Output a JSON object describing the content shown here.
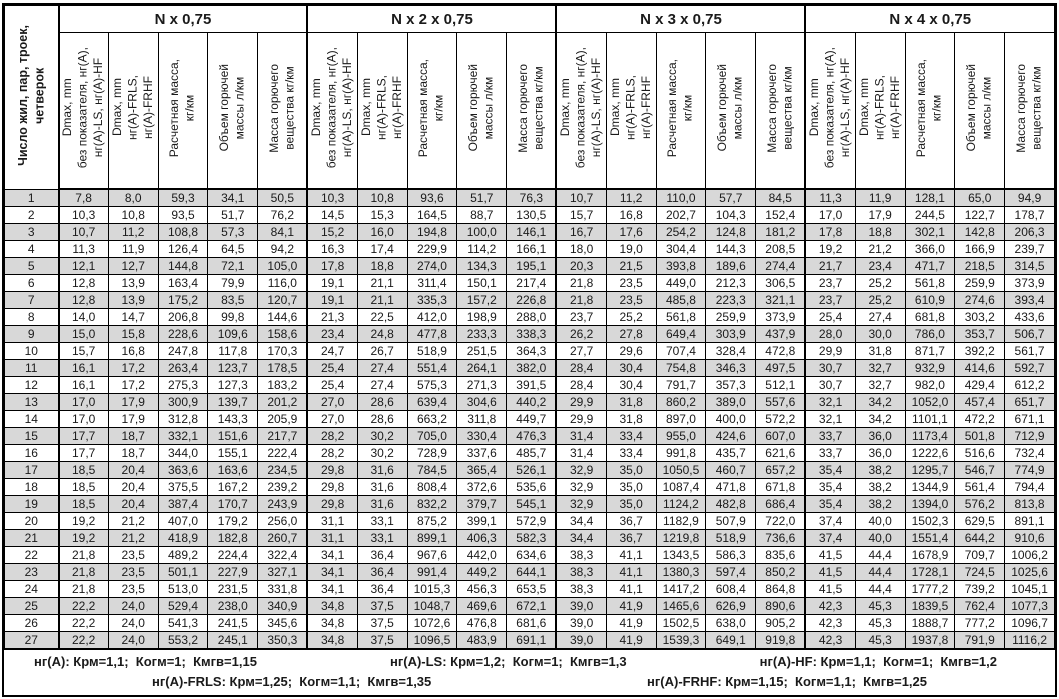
{
  "colors": {
    "stripe": "#d8d8d8",
    "border": "#000000",
    "background": "#ffffff"
  },
  "table": {
    "row_header_title": "Число жил, пар, троек,\nчетверок",
    "groups": [
      {
        "title": "N x 0,75"
      },
      {
        "title": "N x 2 x 0,75"
      },
      {
        "title": "N x 3 x 0,75"
      },
      {
        "title": "N x 4 x 0,75"
      }
    ],
    "sub_columns": [
      "Dmax, mm\nбез показателя, нг(А),\nнг(А)-LS, нг(А)-HF",
      "Dmax, mm\nнг(А)-FRLS,\nнг(А)-FRHF",
      "Расчетная масса,\nкг/км",
      "Объем горючей\nмассы л/км",
      "Масса горючего\nвещества кг/км"
    ],
    "rows": [
      {
        "n": "1",
        "values": [
          "7,8",
          "8,0",
          "59,3",
          "34,1",
          "50,5",
          "10,3",
          "10,8",
          "93,6",
          "51,7",
          "76,3",
          "10,7",
          "11,2",
          "110,0",
          "57,7",
          "84,5",
          "11,3",
          "11,9",
          "128,1",
          "65,0",
          "94,9"
        ]
      },
      {
        "n": "2",
        "values": [
          "10,3",
          "10,8",
          "93,5",
          "51,7",
          "76,2",
          "14,5",
          "15,3",
          "164,5",
          "88,7",
          "130,5",
          "15,7",
          "16,8",
          "202,7",
          "104,3",
          "152,4",
          "17,0",
          "17,9",
          "244,5",
          "122,7",
          "178,7"
        ]
      },
      {
        "n": "3",
        "values": [
          "10,7",
          "11,2",
          "108,8",
          "57,3",
          "84,1",
          "15,2",
          "16,0",
          "194,8",
          "100,0",
          "146,1",
          "16,7",
          "17,6",
          "254,2",
          "124,8",
          "181,2",
          "17,8",
          "18,8",
          "302,1",
          "142,8",
          "206,3"
        ]
      },
      {
        "n": "4",
        "values": [
          "11,3",
          "11,9",
          "126,4",
          "64,5",
          "94,2",
          "16,3",
          "17,4",
          "229,9",
          "114,2",
          "166,1",
          "18,0",
          "19,0",
          "304,4",
          "144,3",
          "208,5",
          "19,2",
          "21,2",
          "366,0",
          "166,9",
          "239,7"
        ]
      },
      {
        "n": "5",
        "values": [
          "12,1",
          "12,7",
          "144,8",
          "72,1",
          "105,0",
          "17,8",
          "18,8",
          "274,0",
          "134,3",
          "195,1",
          "20,3",
          "21,5",
          "393,8",
          "189,6",
          "274,4",
          "21,7",
          "23,4",
          "471,7",
          "218,5",
          "314,5"
        ]
      },
      {
        "n": "6",
        "values": [
          "12,8",
          "13,9",
          "163,4",
          "79,9",
          "116,0",
          "19,1",
          "21,1",
          "311,4",
          "150,1",
          "217,4",
          "21,8",
          "23,5",
          "449,0",
          "212,3",
          "306,5",
          "23,7",
          "25,2",
          "561,8",
          "259,9",
          "373,9"
        ]
      },
      {
        "n": "7",
        "values": [
          "12,8",
          "13,9",
          "175,2",
          "83,5",
          "120,7",
          "19,1",
          "21,1",
          "335,3",
          "157,2",
          "226,8",
          "21,8",
          "23,5",
          "485,8",
          "223,3",
          "321,1",
          "23,7",
          "25,2",
          "610,9",
          "274,6",
          "393,4"
        ]
      },
      {
        "n": "8",
        "values": [
          "14,0",
          "14,7",
          "206,8",
          "99,8",
          "144,6",
          "21,3",
          "22,5",
          "412,0",
          "198,9",
          "288,0",
          "23,7",
          "25,2",
          "561,8",
          "259,9",
          "373,9",
          "25,4",
          "27,4",
          "681,8",
          "303,2",
          "433,6"
        ]
      },
      {
        "n": "9",
        "values": [
          "15,0",
          "15,8",
          "228,6",
          "109,6",
          "158,6",
          "23,4",
          "24,8",
          "477,8",
          "233,3",
          "338,3",
          "26,2",
          "27,8",
          "649,4",
          "303,9",
          "437,9",
          "28,0",
          "30,0",
          "786,0",
          "353,7",
          "506,7"
        ]
      },
      {
        "n": "10",
        "values": [
          "15,7",
          "16,8",
          "247,8",
          "117,8",
          "170,3",
          "24,7",
          "26,7",
          "518,9",
          "251,5",
          "364,3",
          "27,7",
          "29,6",
          "707,4",
          "328,4",
          "472,8",
          "29,9",
          "31,8",
          "871,7",
          "392,2",
          "561,7"
        ]
      },
      {
        "n": "11",
        "values": [
          "16,1",
          "17,2",
          "263,4",
          "123,7",
          "178,5",
          "25,4",
          "27,4",
          "551,4",
          "264,1",
          "382,0",
          "28,4",
          "30,4",
          "754,8",
          "346,3",
          "497,5",
          "30,7",
          "32,7",
          "932,9",
          "414,6",
          "592,7"
        ]
      },
      {
        "n": "12",
        "values": [
          "16,1",
          "17,2",
          "275,3",
          "127,3",
          "183,2",
          "25,4",
          "27,4",
          "575,3",
          "271,3",
          "391,5",
          "28,4",
          "30,4",
          "791,7",
          "357,3",
          "512,1",
          "30,7",
          "32,7",
          "982,0",
          "429,4",
          "612,2"
        ]
      },
      {
        "n": "13",
        "values": [
          "17,0",
          "17,9",
          "300,9",
          "139,7",
          "201,2",
          "27,0",
          "28,6",
          "639,4",
          "304,6",
          "440,2",
          "29,9",
          "31,8",
          "860,2",
          "389,0",
          "557,6",
          "32,1",
          "34,2",
          "1052,0",
          "457,4",
          "651,7"
        ]
      },
      {
        "n": "14",
        "values": [
          "17,0",
          "17,9",
          "312,8",
          "143,3",
          "205,9",
          "27,0",
          "28,6",
          "663,2",
          "311,8",
          "449,7",
          "29,9",
          "31,8",
          "897,0",
          "400,0",
          "572,2",
          "32,1",
          "34,2",
          "1101,1",
          "472,2",
          "671,1"
        ]
      },
      {
        "n": "15",
        "values": [
          "17,7",
          "18,7",
          "332,1",
          "151,6",
          "217,7",
          "28,2",
          "30,2",
          "705,0",
          "330,4",
          "476,3",
          "31,4",
          "33,4",
          "955,0",
          "424,6",
          "607,0",
          "33,7",
          "36,0",
          "1173,4",
          "501,8",
          "712,9"
        ]
      },
      {
        "n": "16",
        "values": [
          "17,7",
          "18,7",
          "344,0",
          "155,1",
          "222,4",
          "28,2",
          "30,2",
          "728,9",
          "337,6",
          "485,7",
          "31,4",
          "33,4",
          "991,8",
          "435,7",
          "621,6",
          "33,7",
          "36,0",
          "1222,6",
          "516,6",
          "732,4"
        ]
      },
      {
        "n": "17",
        "values": [
          "18,5",
          "20,4",
          "363,6",
          "163,6",
          "234,5",
          "29,8",
          "31,6",
          "784,5",
          "365,4",
          "526,1",
          "32,9",
          "35,0",
          "1050,5",
          "460,7",
          "657,2",
          "35,4",
          "38,2",
          "1295,7",
          "546,7",
          "774,9"
        ]
      },
      {
        "n": "18",
        "values": [
          "18,5",
          "20,4",
          "375,5",
          "167,2",
          "239,2",
          "29,8",
          "31,6",
          "808,4",
          "372,6",
          "535,6",
          "32,9",
          "35,0",
          "1087,4",
          "471,8",
          "671,8",
          "35,4",
          "38,2",
          "1344,9",
          "561,4",
          "794,4"
        ]
      },
      {
        "n": "19",
        "values": [
          "18,5",
          "20,4",
          "387,4",
          "170,7",
          "243,9",
          "29,8",
          "31,6",
          "832,2",
          "379,7",
          "545,1",
          "32,9",
          "35,0",
          "1124,2",
          "482,8",
          "686,4",
          "35,4",
          "38,2",
          "1394,0",
          "576,2",
          "813,8"
        ]
      },
      {
        "n": "20",
        "values": [
          "19,2",
          "21,2",
          "407,0",
          "179,2",
          "256,0",
          "31,1",
          "33,1",
          "875,2",
          "399,1",
          "572,9",
          "34,4",
          "36,7",
          "1182,9",
          "507,9",
          "722,0",
          "37,4",
          "40,0",
          "1502,3",
          "629,5",
          "891,1"
        ]
      },
      {
        "n": "21",
        "values": [
          "19,2",
          "21,2",
          "418,9",
          "182,8",
          "260,7",
          "31,1",
          "33,1",
          "899,1",
          "406,3",
          "582,3",
          "34,4",
          "36,7",
          "1219,8",
          "518,9",
          "736,6",
          "37,4",
          "40,0",
          "1551,4",
          "644,2",
          "910,6"
        ]
      },
      {
        "n": "22",
        "values": [
          "21,8",
          "23,5",
          "489,2",
          "224,4",
          "322,4",
          "34,1",
          "36,4",
          "967,6",
          "442,0",
          "634,6",
          "38,3",
          "41,1",
          "1343,5",
          "586,3",
          "835,6",
          "41,5",
          "44,4",
          "1678,9",
          "709,7",
          "1006,2"
        ]
      },
      {
        "n": "23",
        "values": [
          "21,8",
          "23,5",
          "501,1",
          "227,9",
          "327,1",
          "34,1",
          "36,4",
          "991,4",
          "449,2",
          "644,1",
          "38,3",
          "41,1",
          "1380,3",
          "597,4",
          "850,2",
          "41,5",
          "44,4",
          "1728,1",
          "724,5",
          "1025,6"
        ]
      },
      {
        "n": "24",
        "values": [
          "21,8",
          "23,5",
          "513,0",
          "231,5",
          "331,8",
          "34,1",
          "36,4",
          "1015,3",
          "456,3",
          "653,5",
          "38,3",
          "41,1",
          "1417,2",
          "608,4",
          "864,8",
          "41,5",
          "44,4",
          "1777,2",
          "739,2",
          "1045,1"
        ]
      },
      {
        "n": "25",
        "values": [
          "22,2",
          "24,0",
          "529,4",
          "238,0",
          "340,9",
          "34,8",
          "37,5",
          "1048,7",
          "469,6",
          "672,1",
          "39,0",
          "41,9",
          "1465,6",
          "626,9",
          "890,6",
          "42,3",
          "45,3",
          "1839,5",
          "762,4",
          "1077,3"
        ]
      },
      {
        "n": "26",
        "values": [
          "22,2",
          "24,0",
          "541,3",
          "241,5",
          "345,6",
          "34,8",
          "37,5",
          "1072,6",
          "476,8",
          "681,6",
          "39,0",
          "41,9",
          "1502,5",
          "638,0",
          "905,2",
          "42,3",
          "45,3",
          "1888,7",
          "777,2",
          "1096,7"
        ]
      },
      {
        "n": "27",
        "values": [
          "22,2",
          "24,0",
          "553,2",
          "245,1",
          "350,3",
          "34,8",
          "37,5",
          "1096,5",
          "483,9",
          "691,1",
          "39,0",
          "41,9",
          "1539,3",
          "649,1",
          "919,8",
          "42,3",
          "45,3",
          "1937,8",
          "791,9",
          "1116,2"
        ]
      }
    ]
  },
  "footer": {
    "line1": [
      "нг(А): Крм=1,1;  Когм=1;  Кмгв=1,15",
      "нг(А)-LS: Крм=1,2;  Когм=1;  Кмгв=1,3",
      "нг(А)-HF: Крм=1,1;  Когм=1;  Кмгв=1,2"
    ],
    "line2": [
      "нг(А)-FRLS: Крм=1,25;  Когм=1,1;  Кмгв=1,35",
      "нг(А)-FRHF: Крм=1,15;  Когм=1,1;  Кмгв=1,25"
    ]
  }
}
